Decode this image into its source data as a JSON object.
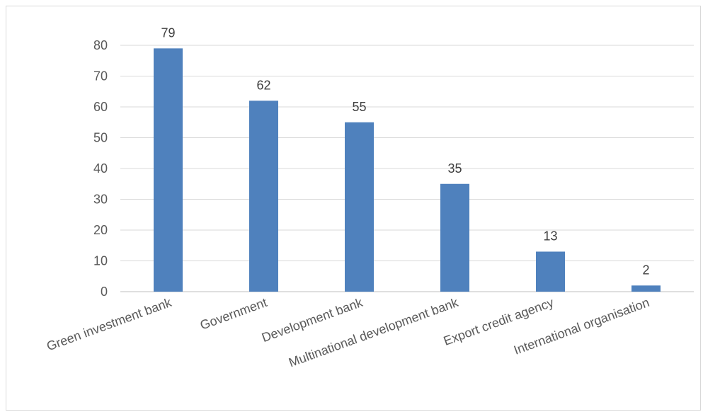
{
  "chart_data": {
    "type": "bar",
    "categories": [
      "Green investment bank",
      "Government",
      "Development bank",
      "Multinational development bank",
      "Export credit agency",
      "International organisation"
    ],
    "values": [
      79,
      62,
      55,
      35,
      13,
      2
    ],
    "data_labels": [
      "79",
      "62",
      "55",
      "35",
      "13",
      "2"
    ],
    "yticks": [
      "0",
      "10",
      "20",
      "30",
      "40",
      "50",
      "60",
      "70",
      "80"
    ],
    "ylim": [
      0,
      80
    ],
    "grid": true,
    "legend": "none",
    "bar_color": "#4f81bd",
    "grid_color": "#d9d9d9"
  }
}
